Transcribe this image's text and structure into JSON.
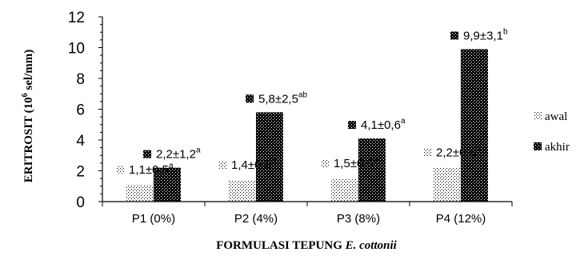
{
  "chart_data": {
    "type": "bar",
    "title": "",
    "ylabel": "ERITROSIT (10^6 sel/mm)",
    "xlabel": "FORMULASI TEPUNG E. cottonii",
    "ylim": [
      0,
      12
    ],
    "yticks": [
      "0",
      "2",
      "4",
      "6",
      "8",
      "10",
      "12"
    ],
    "categories": [
      "P1 (0%)",
      "P2 (4%)",
      "P3 (8%)",
      "P4 (12%)"
    ],
    "series": [
      {
        "name": "awal",
        "values": [
          1.1,
          1.4,
          1.5,
          2.2
        ],
        "labels": [
          "1,1±0,5",
          "1,4±0,6",
          "1,5±0,6",
          "2,2±0,6"
        ],
        "superscripts": [
          "a",
          "b",
          "b",
          "b"
        ]
      },
      {
        "name": "akhir",
        "values": [
          2.2,
          5.8,
          4.1,
          9.9
        ],
        "labels": [
          "2,2±1,2",
          "5,8±2,5",
          "4,1±0,6",
          "9,9±3,1"
        ],
        "superscripts": [
          "a",
          "ab",
          "a",
          "b"
        ]
      }
    ],
    "legend": {
      "position": "right"
    },
    "grid": false
  }
}
